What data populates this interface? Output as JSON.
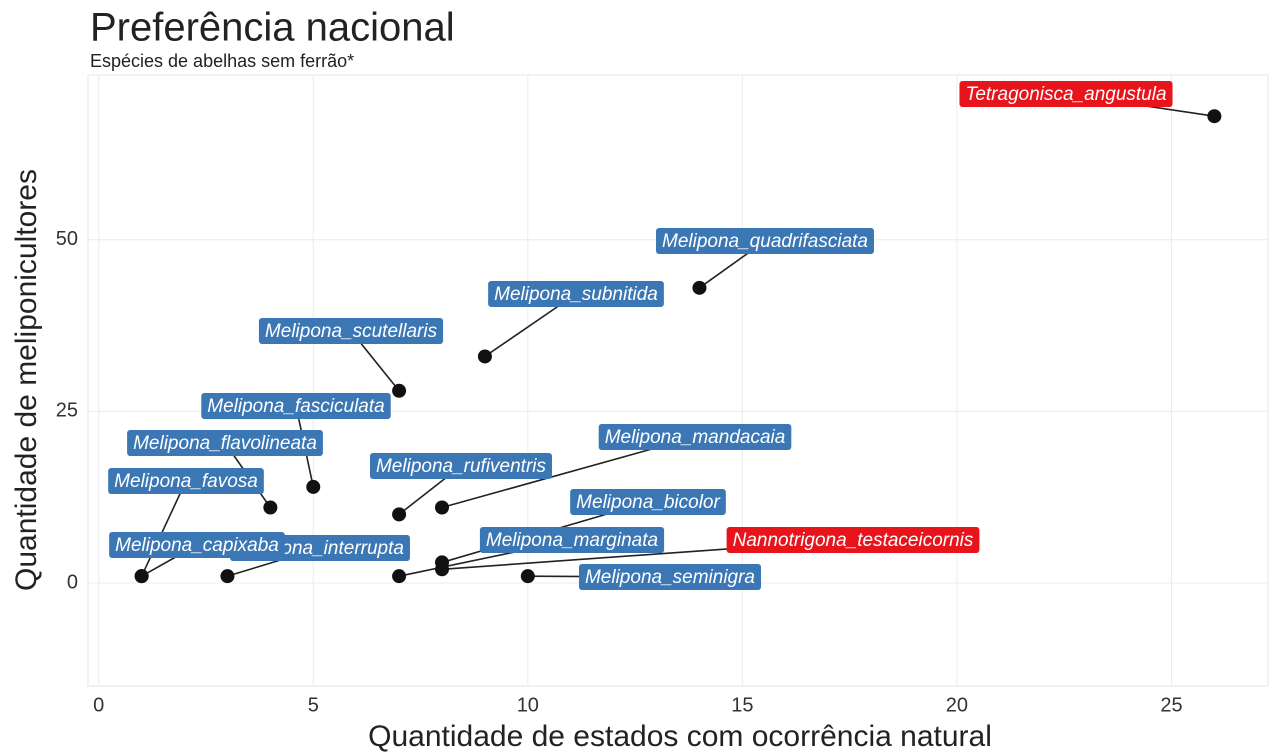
{
  "chart_data": {
    "type": "scatter",
    "title": "Preferência nacional",
    "subtitle": "Espécies de abelhas sem ferrão*",
    "x_label": "Quantidade de estados com ocorrência natural",
    "y_label": "Quantidade de meliponicultores",
    "point_labels": [
      "Tetragonisca_angustula",
      "Melipona_quadrifasciata",
      "Melipona_subnitida",
      "Melipona_scutellaris",
      "Melipona_fasciculata",
      "Melipona_flavolineata",
      "Melipona_favosa",
      "Melipona_capixaba",
      "Melipona_interrupta",
      "Melipona_rufiventris",
      "Melipona_mandacaia",
      "Melipona_bicolor",
      "Melipona_marginata",
      "Nannotrigona_testaceicornis",
      "Melipona_seminigra"
    ],
    "x": [
      26,
      14,
      9,
      7,
      5,
      4,
      1,
      1,
      3,
      7,
      8,
      8,
      7,
      8,
      10
    ],
    "values": [
      68,
      43,
      33,
      28,
      14,
      11,
      1,
      1,
      1,
      10,
      11,
      3,
      1,
      2,
      1
    ],
    "label_colors": [
      "#e8141c",
      "#3b77b4",
      "#3b77b4",
      "#3b77b4",
      "#3b77b4",
      "#3b77b4",
      "#3b77b4",
      "#3b77b4",
      "#3b77b4",
      "#3b77b4",
      "#3b77b4",
      "#3b77b4",
      "#3b77b4",
      "#e8141c",
      "#3b77b4"
    ],
    "point_color": "#111111",
    "xlim": [
      -0.25,
      27.25
    ],
    "ylim": [
      -15,
      74
    ],
    "xticks": [
      0,
      5,
      10,
      15,
      20,
      25
    ],
    "yticks": [
      0,
      25,
      50
    ],
    "grid": true
  }
}
